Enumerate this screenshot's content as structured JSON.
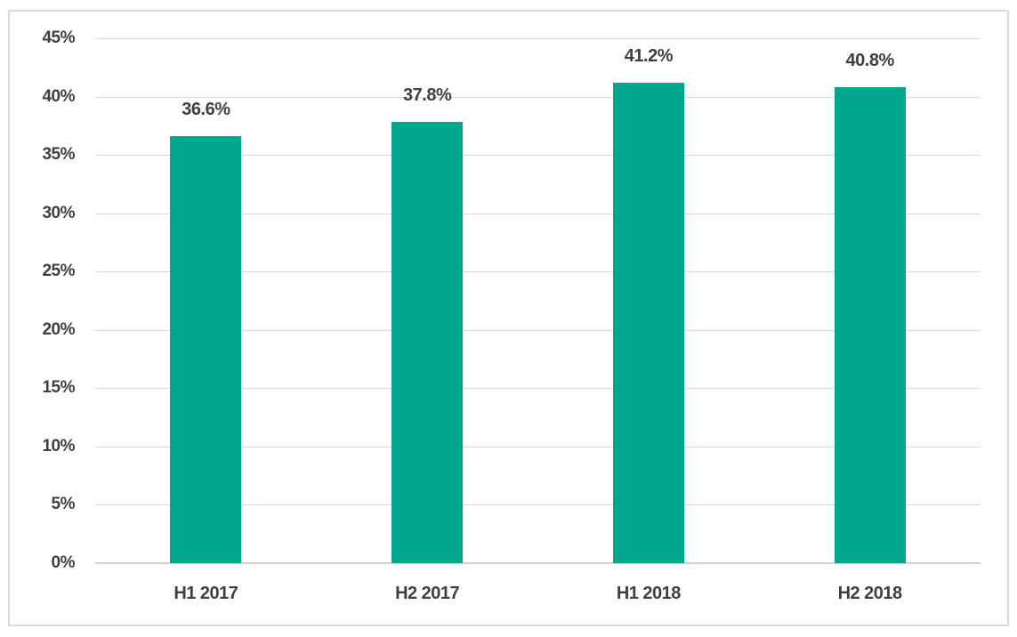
{
  "chart_data": {
    "type": "bar",
    "title": "",
    "xlabel": "",
    "ylabel": "",
    "categories": [
      "H1 2017",
      "H2 2017",
      "H1 2018",
      "H2 2018"
    ],
    "values": [
      36.6,
      37.8,
      41.2,
      40.8
    ],
    "data_labels": [
      "36.6%",
      "37.8%",
      "41.2%",
      "40.8%"
    ],
    "ylim": [
      0,
      45
    ],
    "ytick_step": 5,
    "ytick_labels": [
      "0%",
      "5%",
      "10%",
      "15%",
      "20%",
      "25%",
      "30%",
      "35%",
      "40%",
      "45%"
    ],
    "grid": true,
    "legend_position": "none",
    "colors": {
      "bar": "#00a78c",
      "gridline": "#d9d9d9",
      "axis_line": "#d0d0d0",
      "text": "#3f3f3f",
      "frame_border": "#d9d9d9",
      "background": "#ffffff"
    }
  }
}
